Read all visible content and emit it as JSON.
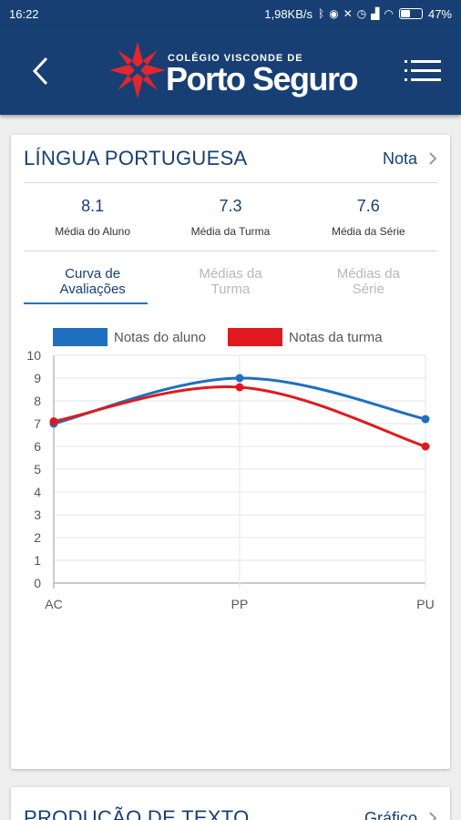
{
  "status_bar": {
    "time": "16:22",
    "network_speed": "1,98KB/s",
    "battery_percent": "47%",
    "battery_level": 0.47
  },
  "app_bar": {
    "logo_small_text": "COLÉGIO VISCONDE DE",
    "logo_big_text": "Porto Seguro",
    "colors": {
      "background": "#173f73",
      "logo_accent": "#e2262d"
    }
  },
  "subject_card": {
    "title": "LÍNGUA PORTUGUESA",
    "header_link_label": "Nota",
    "stats": [
      {
        "value": "8.1",
        "label": "Média do Aluno"
      },
      {
        "value": "7.3",
        "label": "Média da Turma"
      },
      {
        "value": "7.6",
        "label": "Média da Série"
      }
    ],
    "tabs": [
      {
        "line1": "Curva de",
        "line2": "Avaliações",
        "active": true
      },
      {
        "line1": "Médias da",
        "line2": "Turma",
        "active": false
      },
      {
        "line1": "Médias da",
        "line2": "Série",
        "active": false
      }
    ]
  },
  "chart_data": {
    "type": "line",
    "categories": [
      "AC",
      "PP",
      "PU"
    ],
    "series": [
      {
        "name": "Notas do aluno",
        "values": [
          7.0,
          9.0,
          7.2
        ],
        "color": "#1f6fbf"
      },
      {
        "name": "Notas da turma",
        "values": [
          7.1,
          8.6,
          6.0
        ],
        "color": "#e0191e"
      }
    ],
    "ylim": [
      0,
      10
    ],
    "yticks": [
      "0",
      "1",
      "2",
      "3",
      "4",
      "5",
      "6",
      "7",
      "8",
      "9",
      "10"
    ],
    "grid": true,
    "legend_position": "top",
    "title": "",
    "xlabel": "",
    "ylabel": ""
  },
  "next_card": {
    "title": "PRODUÇÃO DE TEXTO",
    "header_link_label": "Gráfico"
  }
}
